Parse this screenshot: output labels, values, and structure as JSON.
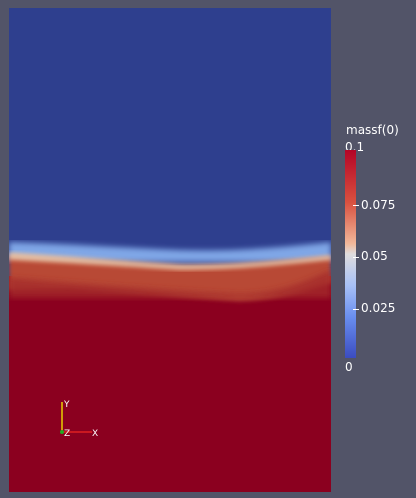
{
  "colorbar": {
    "title": "massf(0)",
    "max_label": "0.1",
    "min_label": "0",
    "ticks": [
      {
        "label": "0.075",
        "value": 0.075
      },
      {
        "label": "0.05",
        "value": 0.05
      },
      {
        "label": "0.025",
        "value": 0.025
      }
    ],
    "range": [
      0,
      0.1
    ]
  },
  "axes_triad": {
    "y_label": "Y",
    "z_label": "Z",
    "x_label": "X"
  },
  "colors": {
    "background": "#525468",
    "low": "#2e3f8e",
    "high": "#8b001f"
  }
}
